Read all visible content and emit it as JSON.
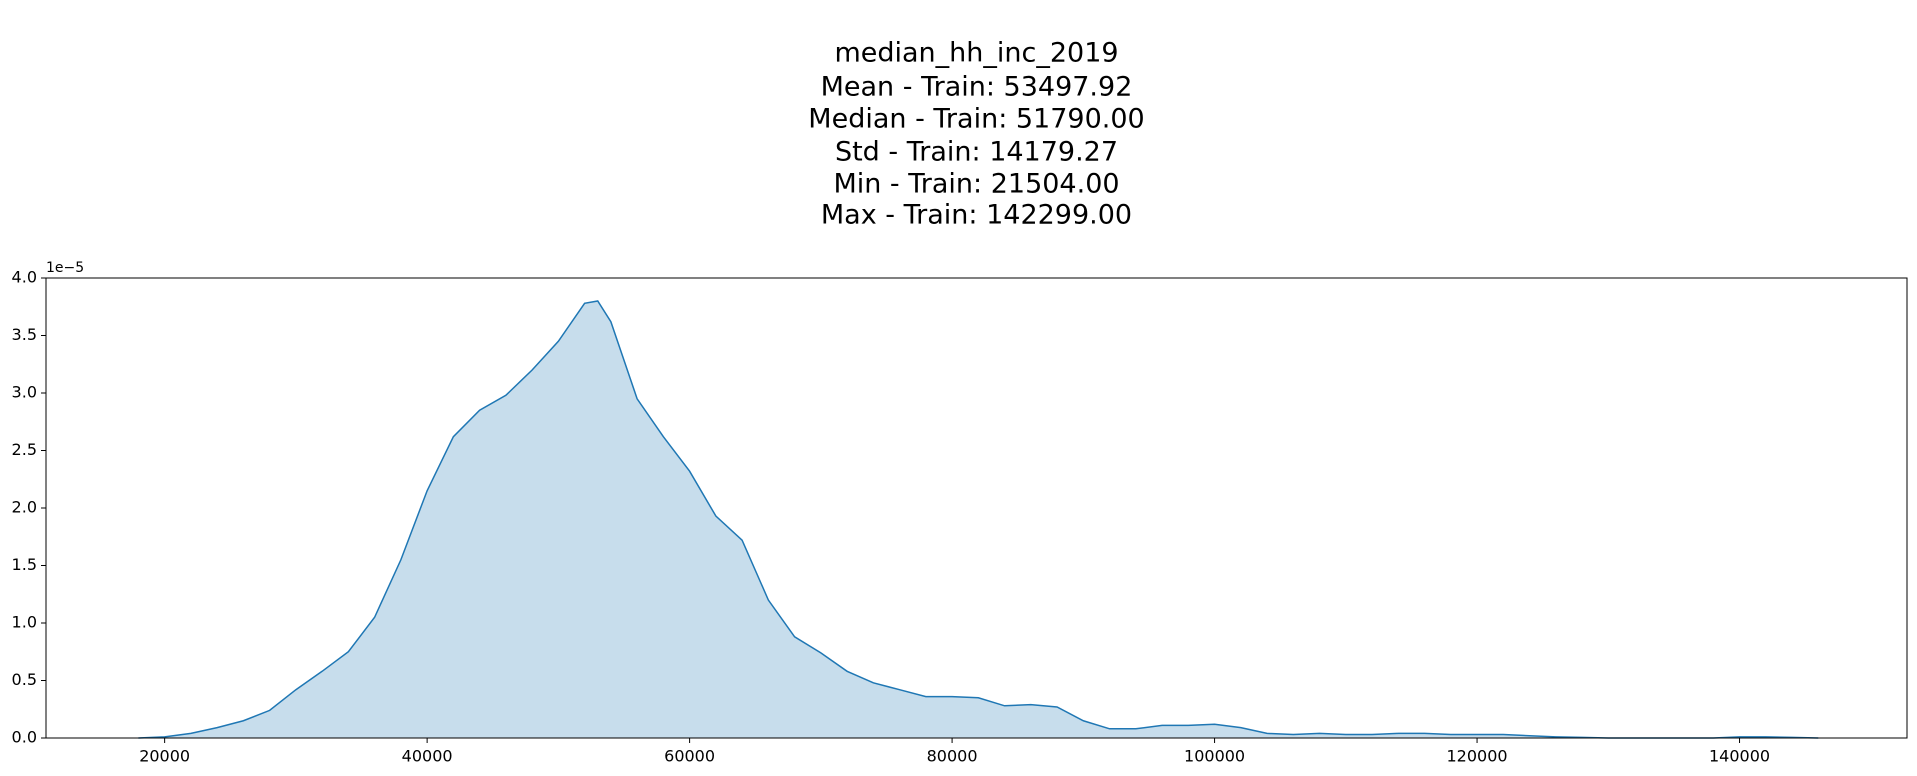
{
  "chart_data": {
    "type": "area",
    "title": [
      "median_hh_inc_2019",
      "Mean - Train: 53497.92",
      "Median - Train: 51790.00",
      "Std - Train: 14179.27",
      "Min - Train: 21504.00",
      "Max - Train: 142299.00"
    ],
    "offset_label": "1e−5",
    "color": "#1f77b4",
    "x": [
      18000,
      20000,
      22000,
      24000,
      26000,
      28000,
      30000,
      32000,
      34000,
      36000,
      38000,
      40000,
      42000,
      44000,
      46000,
      48000,
      50000,
      52000,
      53000,
      54000,
      56000,
      58000,
      60000,
      62000,
      64000,
      66000,
      68000,
      70000,
      72000,
      74000,
      76000,
      78000,
      80000,
      82000,
      84000,
      86000,
      88000,
      90000,
      92000,
      94000,
      96000,
      98000,
      100000,
      102000,
      104000,
      106000,
      108000,
      110000,
      112000,
      114000,
      116000,
      118000,
      120000,
      122000,
      124000,
      126000,
      128000,
      130000,
      132000,
      134000,
      136000,
      138000,
      140000,
      142000,
      144000,
      146000
    ],
    "values": [
      0.0,
      0.01,
      0.04,
      0.09,
      0.15,
      0.24,
      0.42,
      0.58,
      0.75,
      1.05,
      1.55,
      2.15,
      2.62,
      2.85,
      2.98,
      3.2,
      3.45,
      3.78,
      3.8,
      3.62,
      2.95,
      2.62,
      2.32,
      1.93,
      1.72,
      1.2,
      0.88,
      0.74,
      0.58,
      0.48,
      0.42,
      0.36,
      0.36,
      0.35,
      0.28,
      0.29,
      0.27,
      0.15,
      0.08,
      0.08,
      0.11,
      0.11,
      0.12,
      0.09,
      0.04,
      0.03,
      0.04,
      0.03,
      0.03,
      0.04,
      0.04,
      0.03,
      0.03,
      0.03,
      0.02,
      0.01,
      0.005,
      0.0,
      0.0,
      0.0,
      0.0,
      0.0,
      0.01,
      0.01,
      0.005,
      0.0
    ],
    "xlim": [
      10960,
      152760
    ],
    "xticks": [
      20000,
      40000,
      60000,
      80000,
      100000,
      120000,
      140000
    ],
    "ylim": [
      0,
      4.0
    ],
    "yticks": [
      {
        "value": 0,
        "label": "0.0"
      },
      {
        "value": 0.5,
        "label": "0.5"
      },
      {
        "value": 1,
        "label": "1.0"
      },
      {
        "value": 1.5,
        "label": "1.5"
      },
      {
        "value": 2,
        "label": "2.0"
      },
      {
        "value": 2.5,
        "label": "2.5"
      },
      {
        "value": 3,
        "label": "3.0"
      },
      {
        "value": 3.5,
        "label": "3.5"
      },
      {
        "value": 4,
        "label": "4.0"
      }
    ]
  }
}
